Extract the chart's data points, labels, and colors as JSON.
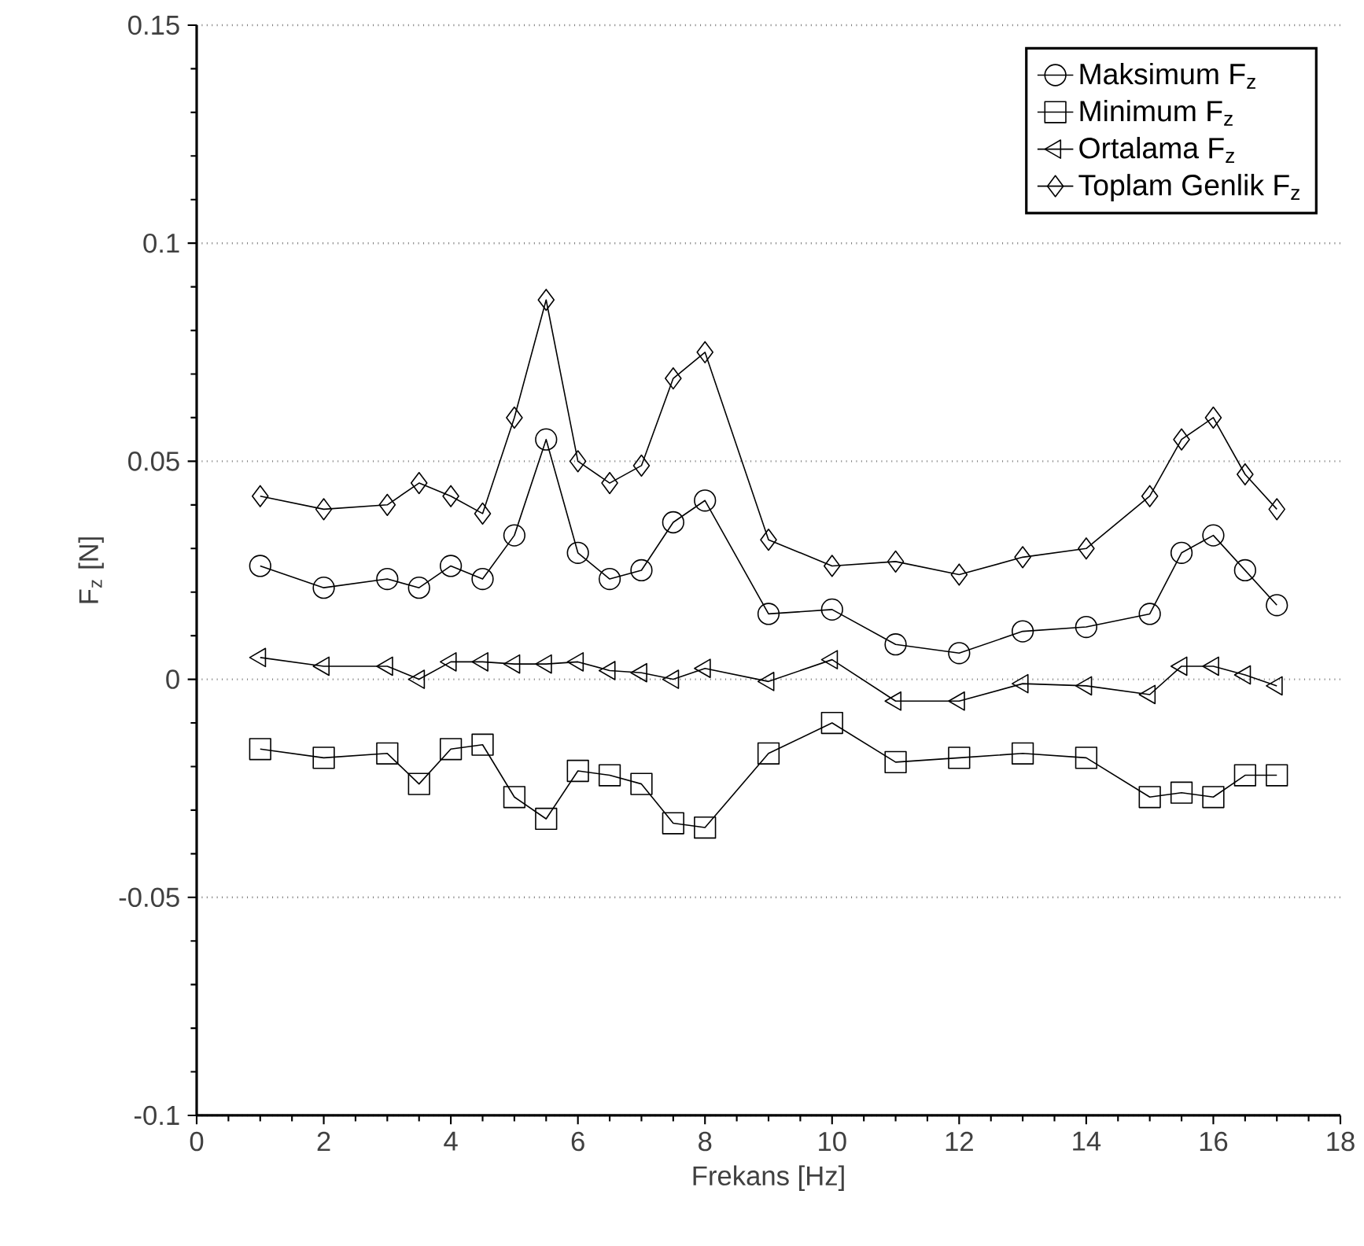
{
  "chart_data": {
    "type": "line",
    "xlabel": "Frekans [Hz]",
    "ylabel": "F$_{z}$ [N]",
    "xlim": [
      0,
      18
    ],
    "ylim": [
      -0.1,
      0.15
    ],
    "xticks": [
      0,
      2,
      4,
      6,
      8,
      10,
      12,
      14,
      16,
      18
    ],
    "yticks": [
      -0.1,
      -0.05,
      0,
      0.05,
      0.1,
      0.15
    ],
    "grid": "y",
    "legend": "top right",
    "line_style": "solid",
    "x": [
      1,
      2,
      3,
      3.5,
      4,
      4.5,
      5,
      5.5,
      6,
      6.5,
      7,
      7.5,
      8,
      9,
      10,
      11,
      12,
      13,
      14,
      15,
      15.5,
      16,
      16.5,
      17
    ],
    "series": [
      {
        "name": "Maksimum F$_{z}$",
        "color": "#000000",
        "marker": "circle",
        "values": [
          0.026,
          0.021,
          0.023,
          0.021,
          0.026,
          0.023,
          0.033,
          0.055,
          0.029,
          0.023,
          0.025,
          0.036,
          0.041,
          0.015,
          0.016,
          0.008,
          0.006,
          0.011,
          0.012,
          0.015,
          0.029,
          0.033,
          0.025,
          0.017
        ]
      },
      {
        "name": "Minimum F$_{z}$",
        "color": "#000000",
        "marker": "square",
        "values": [
          -0.016,
          -0.018,
          -0.017,
          -0.024,
          -0.016,
          -0.015,
          -0.027,
          -0.032,
          -0.021,
          -0.022,
          -0.024,
          -0.033,
          -0.034,
          -0.017,
          -0.01,
          -0.019,
          -0.018,
          -0.017,
          -0.018,
          -0.027,
          -0.026,
          -0.027,
          -0.022,
          -0.022
        ]
      },
      {
        "name": "Ortalama F$_{z}$",
        "color": "#000000",
        "marker": "triangle",
        "values": [
          0.005,
          0.003,
          0.003,
          0.0,
          0.004,
          0.004,
          0.0035,
          0.0035,
          0.004,
          0.002,
          0.0015,
          0.0,
          0.0025,
          -0.0005,
          0.0045,
          -0.005,
          -0.005,
          -0.001,
          -0.0015,
          -0.0035,
          0.003,
          0.003,
          0.001,
          -0.0015
        ]
      },
      {
        "name": "Toplam Genlik F$_{z}$",
        "color": "#000000",
        "marker": "diamond",
        "values": [
          0.042,
          0.039,
          0.04,
          0.045,
          0.042,
          0.038,
          0.06,
          0.087,
          0.05,
          0.045,
          0.049,
          0.069,
          0.075,
          0.032,
          0.026,
          0.027,
          0.024,
          0.028,
          0.03,
          0.042,
          0.055,
          0.06,
          0.047,
          0.039
        ]
      }
    ]
  }
}
